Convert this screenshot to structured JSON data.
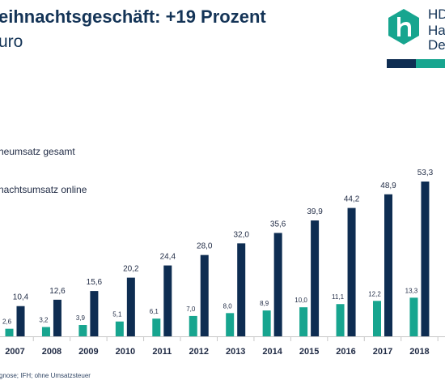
{
  "header": {
    "title": "eihnachtsgeschäft: +19 Prozent",
    "subtitle": "uro"
  },
  "logo": {
    "line1": "HD",
    "line2": "Ha",
    "line3": "De",
    "icon": "hde-logo-icon",
    "colors": {
      "navy": "#0e2d52",
      "teal": "#17a58f"
    }
  },
  "legend": {
    "item1": "heumsatz gesamt",
    "item2": "nachtsumsatz online"
  },
  "source": "gnose; IFH; ohne Umsatzsteuer",
  "chart_data": {
    "type": "bar",
    "categories": [
      "2007",
      "2008",
      "2009",
      "2010",
      "2011",
      "2012",
      "2013",
      "2014",
      "2015",
      "2016",
      "2017",
      "2018"
    ],
    "series": [
      {
        "values": [
          2.6,
          3.2,
          3.9,
          5.1,
          6.1,
          7.0,
          8.0,
          8.9,
          10.0,
          11.1,
          12.2,
          13.3
        ],
        "color": "#17a58f"
      },
      {
        "values": [
          10.4,
          12.6,
          15.6,
          20.2,
          24.4,
          28.0,
          32.0,
          35.6,
          39.9,
          44.2,
          48.9,
          53.3
        ],
        "color": "#0e2d52"
      }
    ],
    "value_labels": [
      [
        "2,6",
        "3,2",
        "3,9",
        "5,1",
        "6,1",
        "7,0",
        "8,0",
        "8,9",
        "10,0",
        "11,1",
        "12,2",
        "13,3"
      ],
      [
        "10,4",
        "12,6",
        "15,6",
        "20,2",
        "24,4",
        "28,0",
        "32,0",
        "35,6",
        "39,9",
        "44,2",
        "48,9",
        "53,3"
      ]
    ],
    "ylim": [
      0,
      53.3
    ],
    "grid": false,
    "axis_color": "#c8c8c8"
  }
}
